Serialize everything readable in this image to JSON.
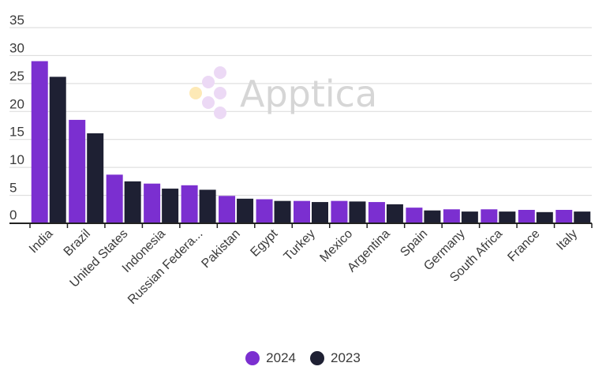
{
  "colors": {
    "series_2024": "#7b2fd0",
    "series_2023": "#1e2033",
    "grid": "#d9d9d9",
    "axis": "#222222"
  },
  "watermark": {
    "text": "Apptica"
  },
  "chart_data": {
    "type": "bar",
    "categories": [
      "India",
      "Brazil",
      "United States",
      "Indonesia",
      "Russian Federa...",
      "Pakistan",
      "Egypt",
      "Turkey",
      "Mexico",
      "Argentina",
      "Spain",
      "Germany",
      "South Africa",
      "France",
      "Italy"
    ],
    "series": [
      {
        "name": "2024",
        "values": [
          29.0,
          18.5,
          8.7,
          7.1,
          6.8,
          4.9,
          4.3,
          4.0,
          4.0,
          3.8,
          2.8,
          2.5,
          2.5,
          2.4,
          2.4
        ]
      },
      {
        "name": "2023",
        "values": [
          26.2,
          16.1,
          7.5,
          6.2,
          6.0,
          4.4,
          4.0,
          3.8,
          3.9,
          3.4,
          2.3,
          2.1,
          2.1,
          2.0,
          2.1
        ]
      }
    ],
    "ylim": [
      0,
      35
    ],
    "yticks": [
      0,
      5,
      10,
      15,
      20,
      25,
      30,
      35
    ],
    "grid": true,
    "legend_position": "bottom-center"
  }
}
